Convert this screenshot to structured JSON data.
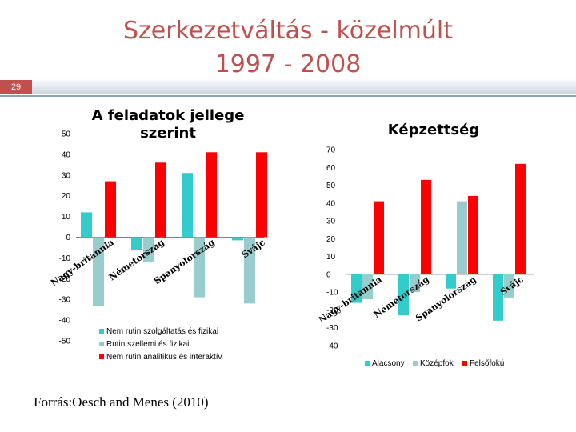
{
  "slide": {
    "title_line1": "Szerkezetváltás - közelmúlt",
    "title_line2": "1997 - 2008",
    "number": "29",
    "source": "Forrás:Oesch and Menes (2010)"
  },
  "colors": {
    "title": "#c0504d",
    "teal": "#33cccc",
    "lightblue": "#99cccc",
    "red": "#ff0000",
    "band": "#8aa1b6"
  },
  "chart_data": [
    {
      "type": "bar",
      "title": "A feladatok jellege szerint",
      "categories": [
        "Nagy-britannia",
        "Németország",
        "Spanyolország",
        "Svájc"
      ],
      "ylim": [
        -50,
        50
      ],
      "yticks": [
        -50,
        -40,
        -30,
        -20,
        -10,
        0,
        10,
        20,
        30,
        40,
        50
      ],
      "legend_position": "bottom",
      "series": [
        {
          "name": "Nem rutin szolgáltatás és fizikai",
          "color": "#33cccc",
          "values": [
            12,
            -6,
            31,
            -1.5
          ]
        },
        {
          "name": "Rutin szellemi és fizikai",
          "color": "#99cccc",
          "values": [
            -33,
            -12,
            -29,
            -32
          ]
        },
        {
          "name": "Nem rutin analitikus és interaktív",
          "color": "#ff0000",
          "values": [
            27,
            36,
            41,
            41
          ]
        }
      ]
    },
    {
      "type": "bar",
      "title": "Képzettség",
      "categories": [
        "Nagy-britannia",
        "Németország",
        "Spanyolország",
        "Svájc"
      ],
      "ylim": [
        -40,
        70
      ],
      "yticks": [
        -40,
        -30,
        -20,
        -10,
        0,
        10,
        20,
        30,
        40,
        50,
        60,
        70
      ],
      "legend_position": "bottom",
      "series": [
        {
          "name": "Alacsony",
          "color": "#33cccc",
          "values": [
            -16,
            -23,
            -8,
            -26
          ]
        },
        {
          "name": "Középfok",
          "color": "#99cccc",
          "values": [
            -14,
            -10,
            41,
            -13
          ]
        },
        {
          "name": "Felsőfokú",
          "color": "#ff0000",
          "values": [
            41,
            53,
            44,
            62
          ]
        }
      ]
    }
  ]
}
